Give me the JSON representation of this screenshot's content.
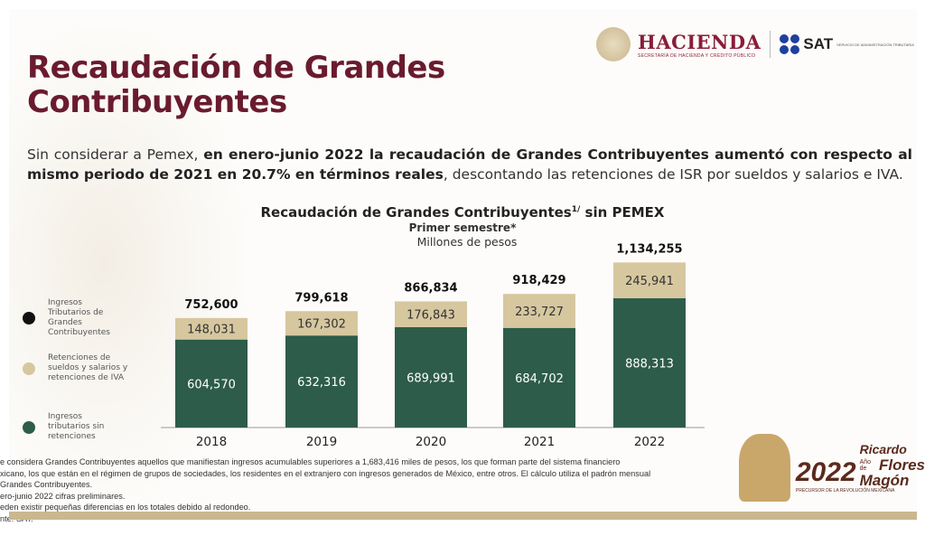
{
  "header": {
    "title_line1": "Recaudación de Grandes",
    "title_line2": "Contribuyentes",
    "logo_hacienda": "HACIENDA",
    "logo_hacienda_sub": "SECRETARÍA DE HACIENDA Y CRÉDITO PÚBLICO",
    "logo_sat": "SAT",
    "logo_sat_sub": "SERVICIO DE ADMINISTRACIÓN TRIBUTARIA"
  },
  "intro": {
    "part1": "Sin considerar a Pemex, ",
    "bold": "en enero-junio 2022 la recaudación de Grandes Contribuyentes aumentó con respecto al mismo periodo de 2021 en 20.7% en términos reales",
    "part2": ", descontando las retenciones de ISR por sueldos y salarios e IVA."
  },
  "chart_data": {
    "type": "bar",
    "stacked": true,
    "title": "Recaudación de Grandes Contribuyentes",
    "title_sup": "1/",
    "title_suffix": " sin PEMEX",
    "subtitle": "Primer semestre*",
    "unit": "Millones de pesos",
    "categories": [
      "2018",
      "2019",
      "2020",
      "2021",
      "2022"
    ],
    "series": [
      {
        "name": "Ingresos tributarios sin retenciones",
        "color": "#2d5c4a",
        "values": [
          604570,
          632316,
          689991,
          684702,
          888313
        ],
        "labels": [
          "604,570",
          "632,316",
          "689,991",
          "684,702",
          "888,313"
        ]
      },
      {
        "name": "Retenciones de sueldos y salarios y retenciones de IVA",
        "color": "#d6c79f",
        "values": [
          148031,
          167302,
          176843,
          233727,
          245941
        ],
        "labels": [
          "148,031",
          "167,302",
          "176,843",
          "233,727",
          "245,941"
        ]
      }
    ],
    "totals": {
      "name": "Ingresos Tributarios de Grandes Contribuyentes",
      "color": "#111111",
      "values": [
        752600,
        799618,
        866834,
        918429,
        1134255
      ],
      "labels": [
        "752,600",
        "799,618",
        "866,834",
        "918,429",
        "1,134,255"
      ]
    },
    "legend_position": "left",
    "grid": false
  },
  "footnotes": [
    "e considera Grandes Contribuyentes aquellos que manifiestan ingresos acumulables superiores a 1,683,416 miles de pesos, los que forman parte del sistema financiero",
    "xicano, los que están en el régimen de grupos de sociedades, los residentes en el extranjero con ingresos generados de México, entre otros. El cálculo utiliza el padrón mensual",
    "Grandes Contribuyentes.",
    "ero-junio 2022 cifras preliminares.",
    "eden existir pequeñas diferencias en los totales debido al redondeo.",
    "nte: SAT."
  ],
  "badge": {
    "year": "2022",
    "name1": "Ricardo",
    "name2": "Flores",
    "name3": "Magón",
    "ano": "Año de",
    "sub": "PRECURSOR DE LA REVOLUCIÓN MEXICANA"
  }
}
